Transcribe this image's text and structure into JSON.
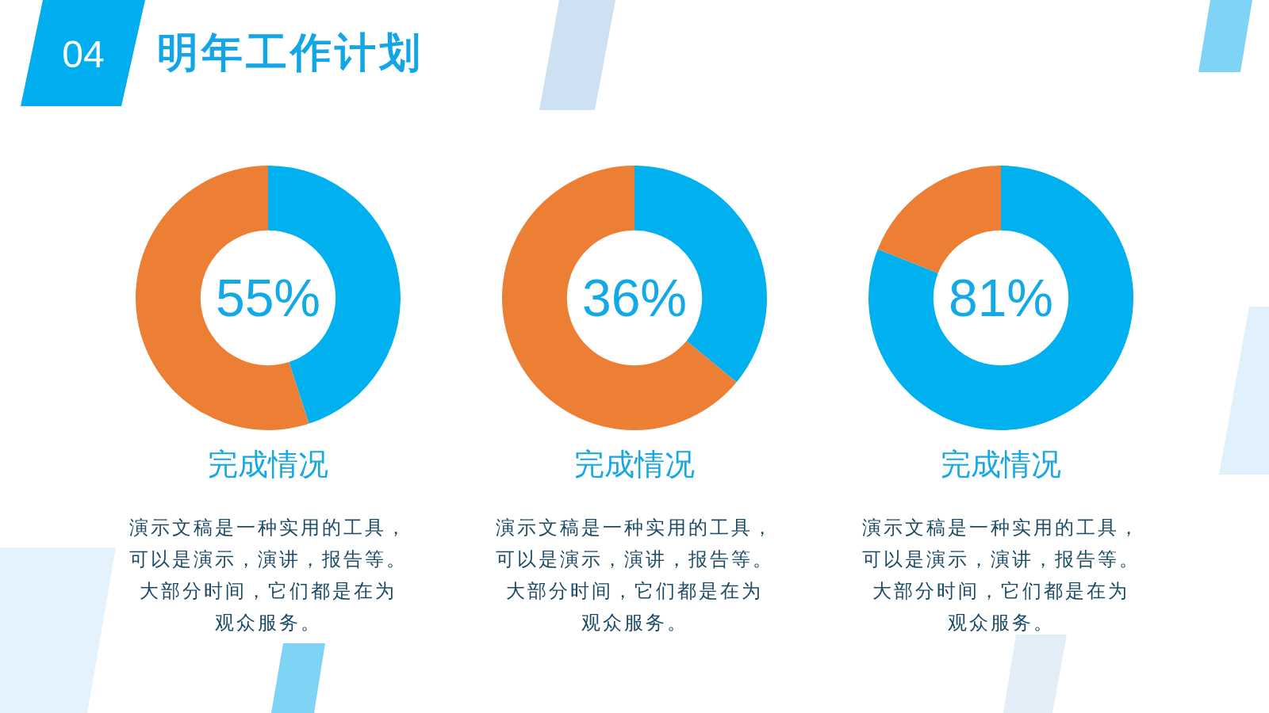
{
  "chart_data": [
    {
      "type": "other",
      "title": "明年工作计划",
      "annotations": [
        "04"
      ]
    },
    {
      "type": "donut",
      "categories": [
        null,
        null
      ],
      "values": [
        45,
        55
      ],
      "colors": [
        "#00b0ef",
        "#ec7f33"
      ],
      "title": "完成情况",
      "annotations": [
        "55%",
        "演示文稿是一种实用的工具，",
        "可以是演示，演讲，报告等。",
        "大部分时间，它们都是在为",
        "观众服务。"
      ]
    },
    {
      "type": "donut",
      "categories": [
        null,
        null
      ],
      "values": [
        36,
        64
      ],
      "colors": [
        "#00b0ef",
        "#ec7f33"
      ],
      "title": "完成情况",
      "annotations": [
        "36%",
        "演示文稿是一种实用的工具，",
        "可以是演示，演讲，报告等。",
        "大部分时间，它们都是在为",
        "观众服务。"
      ]
    },
    {
      "type": "donut",
      "categories": [
        null,
        null
      ],
      "values": [
        81,
        19
      ],
      "colors": [
        "#00b0ef",
        "#ec7f33"
      ],
      "title": "完成情况",
      "annotations": [
        "81%",
        "演示文稿是一种实用的工具，",
        "可以是演示，演讲，报告等。",
        "大部分时间，它们都是在为",
        "观众服务。"
      ]
    }
  ]
}
